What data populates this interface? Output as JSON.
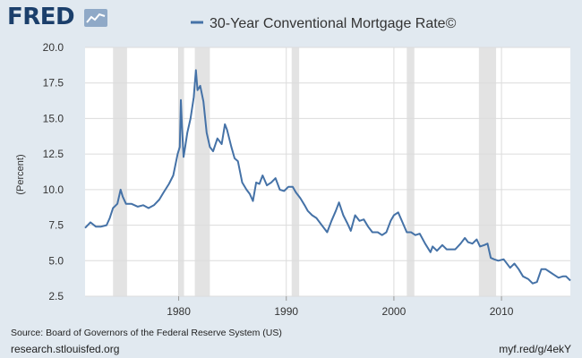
{
  "logo": {
    "text": "FRED"
  },
  "colors": {
    "background": "#e1e9f0",
    "plot_background": "#ffffff",
    "grid": "#dcdcdc",
    "recession": "#e3e3e3",
    "series": "#4572a7",
    "logo": "#1b3f6b"
  },
  "footer": {
    "source": "Source: Board of Governors of the Federal Reserve System (US)",
    "site": "research.stlouisfed.org",
    "shortlink": "myf.red/g/4ekY"
  },
  "chart_data": {
    "type": "line",
    "title": "",
    "xlabel": "",
    "ylabel": "(Percent)",
    "xlim": [
      1971.3,
      2016.4
    ],
    "ylim": [
      2.5,
      20.0
    ],
    "grid": true,
    "legend": "top-center",
    "yticks": [
      "2.5",
      "5.0",
      "7.5",
      "10.0",
      "12.5",
      "15.0",
      "17.5",
      "20.0"
    ],
    "xticks": [
      "1980",
      "1990",
      "2000",
      "2010"
    ],
    "recessions": [
      [
        1973.9,
        1975.2
      ],
      [
        1980.0,
        1980.5
      ],
      [
        1981.5,
        1982.9
      ],
      [
        1990.5,
        1991.2
      ],
      [
        2001.2,
        2001.9
      ],
      [
        2007.9,
        2009.5
      ]
    ],
    "series": [
      {
        "name": "30-Year Conventional Mortgage Rate©",
        "x": [
          1971.3,
          1971.8,
          1972.3,
          1972.8,
          1973.3,
          1973.6,
          1973.9,
          1974.3,
          1974.6,
          1974.8,
          1975.1,
          1975.6,
          1976.2,
          1976.7,
          1977.2,
          1977.7,
          1978.2,
          1978.6,
          1979.1,
          1979.5,
          1979.9,
          1980.1,
          1980.2,
          1980.3,
          1980.45,
          1980.6,
          1980.8,
          1981.1,
          1981.4,
          1981.6,
          1981.75,
          1982.0,
          1982.3,
          1982.6,
          1982.9,
          1983.2,
          1983.6,
          1984.0,
          1984.3,
          1984.5,
          1984.9,
          1985.2,
          1985.5,
          1985.9,
          1986.3,
          1986.6,
          1986.9,
          1987.2,
          1987.5,
          1987.8,
          1988.2,
          1988.6,
          1989.0,
          1989.4,
          1989.8,
          1990.2,
          1990.6,
          1990.9,
          1991.3,
          1991.7,
          1992.0,
          1992.4,
          1992.8,
          1993.3,
          1993.8,
          1994.2,
          1994.6,
          1994.9,
          1995.3,
          1995.7,
          1996.0,
          1996.4,
          1996.8,
          1997.2,
          1997.6,
          1998.0,
          1998.5,
          1998.9,
          1999.3,
          1999.7,
          2000.0,
          2000.4,
          2000.8,
          2001.2,
          2001.6,
          2002.0,
          2002.4,
          2002.9,
          2003.4,
          2003.6,
          2004.0,
          2004.5,
          2004.9,
          2005.3,
          2005.7,
          2006.2,
          2006.6,
          2006.9,
          2007.3,
          2007.7,
          2008.0,
          2008.4,
          2008.7,
          2009.0,
          2009.3,
          2009.7,
          2010.2,
          2010.8,
          2011.2,
          2011.6,
          2012.0,
          2012.5,
          2012.9,
          2013.3,
          2013.7,
          2014.1,
          2014.5,
          2014.9,
          2015.3,
          2015.7,
          2016.0,
          2016.4
        ],
        "values": [
          7.3,
          7.7,
          7.4,
          7.4,
          7.5,
          8.0,
          8.7,
          9.0,
          10.0,
          9.5,
          9.0,
          9.0,
          8.8,
          8.9,
          8.7,
          8.9,
          9.3,
          9.8,
          10.4,
          11.0,
          12.5,
          13.0,
          16.3,
          14.5,
          12.3,
          13.0,
          14.0,
          15.0,
          16.5,
          18.4,
          17.0,
          17.3,
          16.2,
          14.0,
          13.0,
          12.7,
          13.6,
          13.2,
          14.6,
          14.2,
          13.0,
          12.2,
          12.0,
          10.5,
          10.0,
          9.7,
          9.2,
          10.5,
          10.4,
          11.0,
          10.3,
          10.5,
          10.8,
          10.0,
          9.9,
          10.2,
          10.2,
          9.8,
          9.4,
          8.9,
          8.5,
          8.2,
          8.0,
          7.5,
          7.0,
          7.8,
          8.5,
          9.1,
          8.2,
          7.6,
          7.1,
          8.2,
          7.8,
          7.9,
          7.4,
          7.0,
          7.0,
          6.8,
          7.0,
          7.8,
          8.2,
          8.4,
          7.7,
          7.0,
          7.0,
          6.8,
          6.9,
          6.2,
          5.6,
          6.0,
          5.7,
          6.1,
          5.8,
          5.8,
          5.8,
          6.2,
          6.6,
          6.3,
          6.2,
          6.5,
          6.0,
          6.1,
          6.2,
          5.2,
          5.1,
          5.0,
          5.1,
          4.5,
          4.8,
          4.4,
          3.9,
          3.7,
          3.4,
          3.5,
          4.4,
          4.4,
          4.2,
          4.0,
          3.8,
          3.9,
          3.9,
          3.6
        ]
      }
    ]
  }
}
